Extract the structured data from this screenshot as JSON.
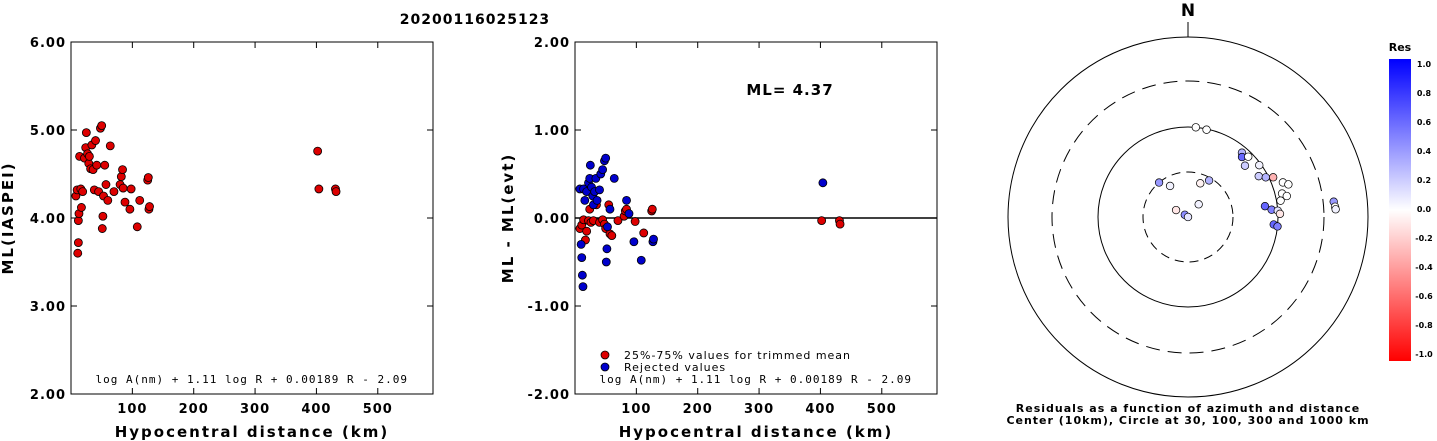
{
  "title": "20200116025123",
  "formula": "log A(nm) + 1.11 log R + 0.00189 R - 2.09",
  "ml_text": "ML= 4.37",
  "colors": {
    "accepted": "#dd0000",
    "rejected": "#0000cc"
  },
  "legend": {
    "accepted": "25%-75% values for trimmed mean",
    "rejected": "Rejected values"
  },
  "chart_data": [
    {
      "type": "scatter",
      "xlabel": "Hypocentral distance (km)",
      "ylabel": "ML(IASPEI)",
      "xticks": [
        "100",
        "200",
        "300",
        "400",
        "500"
      ],
      "yticks": [
        "2.00",
        "3.00",
        "4.00",
        "5.00",
        "6.00"
      ],
      "xlim": [
        0,
        590
      ],
      "ylim": [
        2.0,
        6.0
      ],
      "points": [
        [
          8,
          4.25
        ],
        [
          10,
          4.32
        ],
        [
          11,
          3.6
        ],
        [
          12,
          3.72
        ],
        [
          12,
          3.97
        ],
        [
          13,
          4.05
        ],
        [
          14,
          4.7
        ],
        [
          16,
          4.33
        ],
        [
          17,
          4.12
        ],
        [
          19,
          4.3
        ],
        [
          22,
          4.68
        ],
        [
          24,
          4.8
        ],
        [
          25,
          4.97
        ],
        [
          27,
          4.73
        ],
        [
          29,
          4.62
        ],
        [
          30,
          4.7
        ],
        [
          32,
          4.56
        ],
        [
          34,
          4.83
        ],
        [
          36,
          4.55
        ],
        [
          38,
          4.32
        ],
        [
          40,
          4.88
        ],
        [
          42,
          4.6
        ],
        [
          45,
          4.3
        ],
        [
          48,
          5.02
        ],
        [
          50,
          5.05
        ],
        [
          51,
          3.88
        ],
        [
          52,
          4.02
        ],
        [
          53,
          4.25
        ],
        [
          55,
          4.6
        ],
        [
          57,
          4.38
        ],
        [
          60,
          4.2
        ],
        [
          64,
          4.82
        ],
        [
          70,
          4.3
        ],
        [
          80,
          4.38
        ],
        [
          82,
          4.47
        ],
        [
          84,
          4.55
        ],
        [
          85,
          4.34
        ],
        [
          88,
          4.18
        ],
        [
          96,
          4.1
        ],
        [
          98,
          4.33
        ],
        [
          108,
          3.9
        ],
        [
          112,
          4.2
        ],
        [
          125,
          4.43
        ],
        [
          126,
          4.46
        ],
        [
          127,
          4.1
        ],
        [
          128,
          4.13
        ],
        [
          402,
          4.76
        ],
        [
          404,
          4.33
        ],
        [
          431,
          4.33
        ],
        [
          432,
          4.3
        ]
      ]
    },
    {
      "type": "scatter",
      "xlabel": "Hypocentral distance (km)",
      "ylabel": "ML - ML(evt)",
      "xticks": [
        "100",
        "200",
        "300",
        "400",
        "500"
      ],
      "yticks": [
        "-2.00",
        "-1.00",
        "0.00",
        "1.00",
        "2.00"
      ],
      "xlim": [
        0,
        590
      ],
      "ylim": [
        -2.0,
        2.0
      ],
      "series": [
        {
          "name": "25%-75% values for trimmed mean",
          "points": [
            [
              8,
              -0.12
            ],
            [
              11,
              -0.08
            ],
            [
              14,
              -0.02
            ],
            [
              17,
              -0.25
            ],
            [
              19,
              -0.15
            ],
            [
              22,
              -0.03
            ],
            [
              24,
              0.1
            ],
            [
              26,
              -0.05
            ],
            [
              30,
              -0.03
            ],
            [
              35,
              0.15
            ],
            [
              40,
              -0.05
            ],
            [
              45,
              -0.02
            ],
            [
              48,
              -0.07
            ],
            [
              50,
              -0.12
            ],
            [
              55,
              0.15
            ],
            [
              57,
              -0.18
            ],
            [
              60,
              -0.2
            ],
            [
              70,
              -0.03
            ],
            [
              80,
              0.02
            ],
            [
              82,
              0.08
            ],
            [
              84,
              0.1
            ],
            [
              98,
              -0.04
            ],
            [
              112,
              -0.17
            ],
            [
              125,
              0.08
            ],
            [
              126,
              0.1
            ],
            [
              402,
              -0.03
            ],
            [
              431,
              -0.03
            ],
            [
              432,
              -0.07
            ]
          ]
        },
        {
          "name": "Rejected values",
          "points": [
            [
              8,
              0.33
            ],
            [
              10,
              -0.3
            ],
            [
              11,
              -0.45
            ],
            [
              12,
              -0.65
            ],
            [
              13,
              -0.78
            ],
            [
              14,
              0.33
            ],
            [
              16,
              0.2
            ],
            [
              19,
              0.3
            ],
            [
              22,
              0.4
            ],
            [
              24,
              0.45
            ],
            [
              25,
              0.6
            ],
            [
              27,
              0.35
            ],
            [
              29,
              0.25
            ],
            [
              30,
              0.15
            ],
            [
              32,
              0.3
            ],
            [
              34,
              0.45
            ],
            [
              36,
              0.2
            ],
            [
              40,
              0.32
            ],
            [
              42,
              0.5
            ],
            [
              45,
              0.55
            ],
            [
              48,
              0.65
            ],
            [
              50,
              0.68
            ],
            [
              51,
              -0.5
            ],
            [
              52,
              -0.35
            ],
            [
              53,
              -0.1
            ],
            [
              57,
              0.1
            ],
            [
              64,
              0.45
            ],
            [
              84,
              0.2
            ],
            [
              88,
              0.05
            ],
            [
              96,
              -0.27
            ],
            [
              108,
              -0.48
            ],
            [
              127,
              -0.27
            ],
            [
              128,
              -0.24
            ],
            [
              404,
              0.4
            ]
          ]
        }
      ]
    },
    {
      "type": "scatter",
      "subtype": "polar",
      "north_label": "N",
      "caption_line1": "Residuals as a function of azimuth and distance",
      "caption_line2": "Center (10km), Circle at 30, 100, 300 and 1000 km",
      "rings_km": [
        30,
        100,
        300,
        1000
      ],
      "colorbar": {
        "title": "Res",
        "ticks": [
          "1.0",
          "0.8",
          "0.6",
          "0.4",
          "0.2",
          "0.0",
          "-0.2",
          "-0.4",
          "-0.6",
          "-0.8",
          "-1.0"
        ],
        "range": [
          -1.0,
          1.0
        ]
      },
      "points": [
        {
          "az": 35,
          "dist": 10,
          "res": 0.0
        },
        {
          "az": 40,
          "dist": 15,
          "res": 0.05
        },
        {
          "az": 20,
          "dist": 24,
          "res": -0.05
        },
        {
          "az": 30,
          "dist": 28,
          "res": 0.3
        },
        {
          "az": 300,
          "dist": 14,
          "res": -0.1
        },
        {
          "az": 305,
          "dist": 11,
          "res": 0.45
        },
        {
          "az": 330,
          "dist": 24,
          "res": 0.05
        },
        {
          "az": 320,
          "dist": 30,
          "res": 0.4
        },
        {
          "az": 280,
          "dist": 10,
          "res": 0.1
        },
        {
          "az": 5,
          "dist": 100,
          "res": 0.0
        },
        {
          "az": 12,
          "dist": 98,
          "res": 0.0
        },
        {
          "az": 40,
          "dist": 85,
          "res": 0.3
        },
        {
          "az": 42,
          "dist": 78,
          "res": 0.6
        },
        {
          "az": 48,
          "dist": 70,
          "res": 0.2
        },
        {
          "az": 45,
          "dist": 88,
          "res": 0.0
        },
        {
          "az": 54,
          "dist": 95,
          "res": 0.05
        },
        {
          "az": 60,
          "dist": 80,
          "res": 0.2
        },
        {
          "az": 63,
          "dist": 93,
          "res": 0.3
        },
        {
          "az": 65,
          "dist": 110,
          "res": -0.3
        },
        {
          "az": 70,
          "dist": 130,
          "res": 0.0
        },
        {
          "az": 72,
          "dist": 145,
          "res": 0.0
        },
        {
          "az": 76,
          "dist": 118,
          "res": 0.0
        },
        {
          "az": 78,
          "dist": 130,
          "res": 0.0
        },
        {
          "az": 82,
          "dist": 72,
          "res": 0.6
        },
        {
          "az": 85,
          "dist": 85,
          "res": 0.5
        },
        {
          "az": 86,
          "dist": 100,
          "res": 0.1
        },
        {
          "az": 88,
          "dist": 105,
          "res": -0.1
        },
        {
          "az": 80,
          "dist": 110,
          "res": 0.0
        },
        {
          "az": 95,
          "dist": 90,
          "res": 0.6
        },
        {
          "az": 96,
          "dist": 100,
          "res": 0.5
        },
        {
          "az": 84,
          "dist": 400,
          "res": 0.4
        },
        {
          "az": 86,
          "dist": 410,
          "res": 0.0
        },
        {
          "az": 87,
          "dist": 415,
          "res": 0.05
        }
      ]
    }
  ]
}
